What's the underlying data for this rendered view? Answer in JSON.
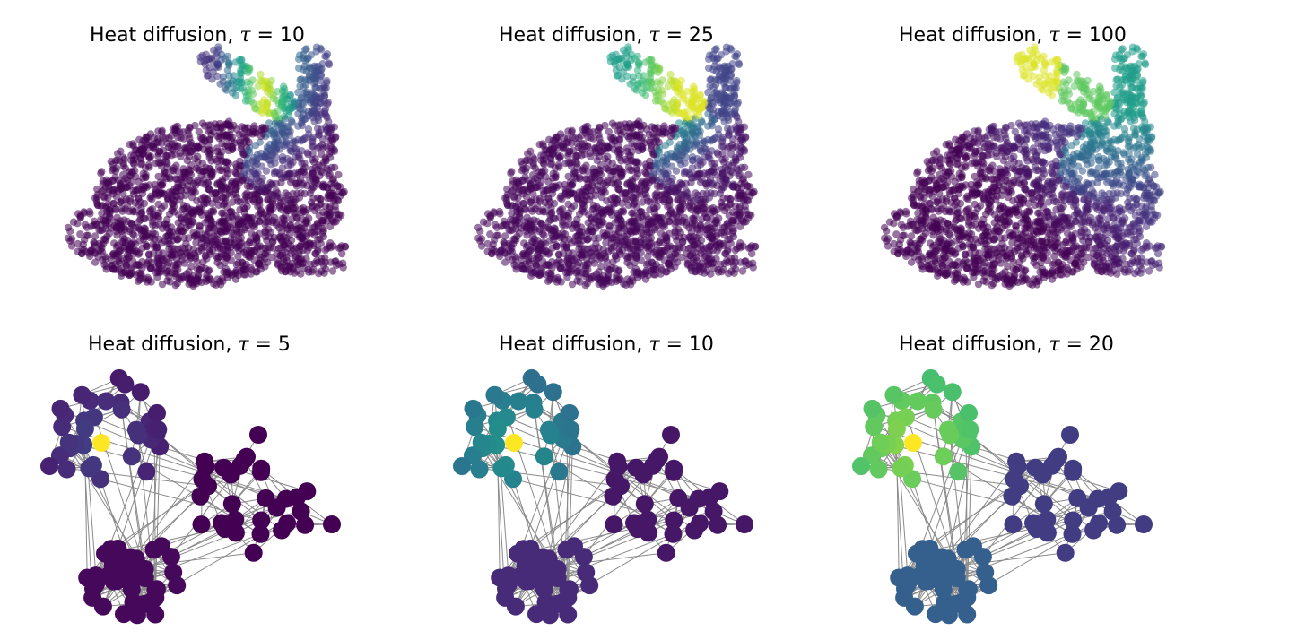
{
  "panels": [
    {
      "id": "bunny-10",
      "kind": "bunny",
      "title_text": "Heat diffusion, ",
      "tau_symbol": "τ",
      "tau_text": " = 10",
      "tau": 10,
      "colormap": "viridis"
    },
    {
      "id": "bunny-25",
      "kind": "bunny",
      "title_text": "Heat diffusion, ",
      "tau_symbol": "τ",
      "tau_text": " = 25",
      "tau": 25,
      "colormap": "viridis"
    },
    {
      "id": "bunny-100",
      "kind": "bunny",
      "title_text": "Heat diffusion, ",
      "tau_symbol": "τ",
      "tau_text": " = 100",
      "tau": 100,
      "colormap": "viridis"
    },
    {
      "id": "graph-5",
      "kind": "graph",
      "title_text": "Heat diffusion, ",
      "tau_symbol": "τ",
      "tau_text": " = 5",
      "tau": 5,
      "colormap": "viridis"
    },
    {
      "id": "graph-10",
      "kind": "graph",
      "title_text": "Heat diffusion, ",
      "tau_symbol": "τ",
      "tau_text": " = 10",
      "tau": 10,
      "colormap": "viridis"
    },
    {
      "id": "graph-20",
      "kind": "graph",
      "title_text": "Heat diffusion, ",
      "tau_symbol": "τ",
      "tau_text": " = 20",
      "tau": 20,
      "colormap": "viridis"
    }
  ],
  "colors": {
    "edge": "#8a8a8a",
    "viridis_low": "#440154",
    "viridis_mid": "#21918c",
    "viridis_high": "#fde725"
  }
}
